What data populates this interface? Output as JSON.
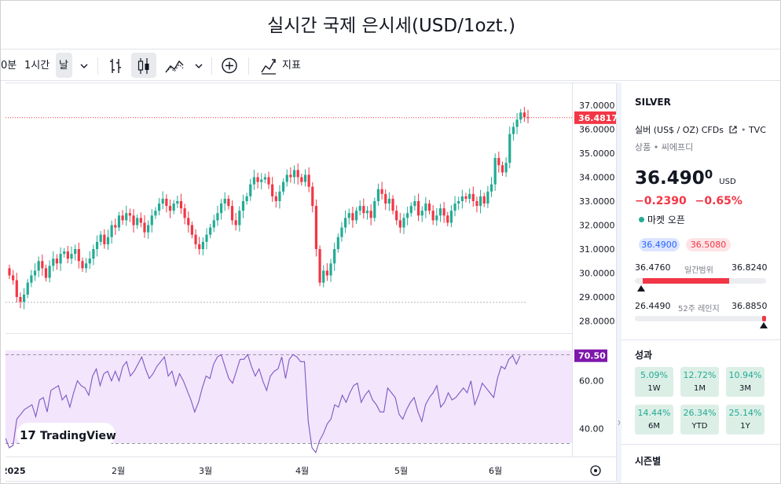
{
  "page_title": "실시간 국제 은시세(USD/1ozt.)",
  "toolbar": {
    "interval_partial": "0분",
    "interval_1h": "1시간",
    "interval_day": "날",
    "indicators_label": "지표"
  },
  "price_scale": {
    "labels": [
      "37.0000",
      "36.0000",
      "35.0000",
      "34.0000",
      "33.0000",
      "32.0000",
      "31.0000",
      "30.0000",
      "29.0000",
      "28.0000"
    ],
    "current_price_label": "36.4817",
    "rsi_labels": [
      "60.00",
      "40.00"
    ],
    "rsi_current_label": "70.50"
  },
  "time_axis": [
    "2025",
    "2월",
    "3월",
    "4월",
    "5월",
    "6월"
  ],
  "watermark": "TradingView",
  "colors": {
    "up": "#22ab94",
    "down": "#f23645",
    "rsi_line": "#7e57c2",
    "rsi_band": "#f3e5fc",
    "price_tag": "#f23645",
    "rsi_tag": "#7e17ab"
  },
  "sidebar": {
    "symbol": "SILVER",
    "description": "실버 (US$ / OZ) CFDs",
    "source": "TVC",
    "category": "상품",
    "category2": "씨에프디",
    "price_main": "36.490",
    "price_sup": "0",
    "currency": "USD",
    "change": "−0.2390",
    "change_pct": "−0.65%",
    "market_status": "마켓 오픈",
    "bid": "36.4900",
    "ask": "36.5080",
    "day_low": "36.4760",
    "day_range_label": "일간범위",
    "day_high": "36.8240",
    "week52_low": "26.4490",
    "week52_label": "52주 레인지",
    "week52_high": "36.8850",
    "performance_title": "성과",
    "performance": [
      {
        "value": "5.09%",
        "label": "1W"
      },
      {
        "value": "12.72%",
        "label": "1M"
      },
      {
        "value": "10.94%",
        "label": "3M"
      },
      {
        "value": "14.44%",
        "label": "6M"
      },
      {
        "value": "26.34%",
        "label": "YTD"
      },
      {
        "value": "25.14%",
        "label": "1Y"
      }
    ],
    "seasonals_title": "시즌별"
  },
  "chart_data": {
    "type": "candlestick",
    "x_start": "2025-01-02",
    "x_ticks": [
      "2025",
      "2월",
      "3월",
      "4월",
      "5월",
      "6월"
    ],
    "ylim": [
      27.7,
      37.3
    ],
    "y_ticks": [
      37,
      36,
      35,
      34,
      33,
      32,
      31,
      30,
      29,
      28
    ],
    "current_price": 36.4817,
    "baseline": 28.78,
    "close": [
      29.9,
      29.7,
      29.0,
      28.8,
      29.1,
      29.6,
      29.9,
      30.1,
      30.5,
      30.2,
      29.8,
      30.3,
      30.6,
      30.4,
      30.8,
      30.9,
      30.6,
      30.8,
      31.0,
      30.5,
      30.2,
      30.4,
      30.6,
      31.0,
      31.3,
      31.6,
      31.2,
      31.5,
      32.0,
      31.9,
      32.4,
      32.2,
      32.5,
      32.4,
      32.0,
      32.3,
      32.1,
      31.7,
      32.0,
      32.4,
      32.6,
      32.9,
      33.1,
      32.8,
      32.6,
      32.9,
      33.0,
      32.7,
      32.3,
      32.0,
      31.6,
      31.2,
      31.0,
      31.3,
      31.6,
      31.9,
      32.2,
      32.5,
      32.9,
      33.1,
      32.8,
      32.2,
      32.0,
      32.6,
      33.0,
      33.2,
      33.7,
      34.0,
      33.8,
      33.9,
      34.0,
      33.7,
      33.2,
      33.0,
      33.4,
      33.8,
      34.1,
      34.0,
      34.3,
      34.0,
      33.8,
      34.1,
      33.6,
      32.8,
      31.0,
      29.6,
      30.1,
      29.9,
      30.4,
      31.0,
      31.5,
      31.9,
      32.3,
      32.5,
      32.2,
      32.6,
      32.8,
      32.5,
      32.6,
      32.3,
      33.0,
      33.5,
      33.3,
      32.9,
      33.1,
      32.6,
      32.2,
      31.9,
      32.3,
      32.5,
      32.8,
      33.0,
      32.4,
      32.6,
      32.9,
      32.6,
      32.2,
      32.4,
      32.7,
      32.4,
      32.1,
      32.6,
      32.9,
      33.0,
      33.2,
      33.1,
      33.3,
      33.0,
      32.8,
      33.2,
      32.9,
      33.4,
      33.7,
      34.8,
      34.5,
      34.2,
      34.6,
      35.8,
      36.1,
      36.4,
      36.7,
      36.5,
      36.4817
    ],
    "rsi": [
      36,
      32,
      33,
      44,
      46,
      48,
      49,
      50,
      45,
      52,
      53,
      47,
      56,
      57,
      58,
      52,
      54,
      49,
      55,
      60,
      58,
      57,
      54,
      62,
      65,
      58,
      63,
      64,
      60,
      64,
      60,
      66,
      68,
      62,
      64,
      67,
      70,
      65,
      61,
      63,
      66,
      68,
      70,
      62,
      64,
      58,
      63,
      60,
      56,
      52,
      47,
      51,
      57,
      62,
      61,
      67,
      70,
      71,
      66,
      61,
      59,
      64,
      69,
      69,
      71,
      66,
      62,
      65,
      60,
      56,
      62,
      64,
      65,
      70,
      61,
      69,
      71,
      70,
      68,
      68,
      43,
      32,
      30,
      35,
      38,
      42,
      44,
      50,
      49,
      54,
      51,
      55,
      58,
      59,
      51,
      54,
      56,
      52,
      50,
      47,
      47,
      57,
      55,
      53,
      46,
      44,
      48,
      51,
      53,
      47,
      43,
      50,
      53,
      55,
      58,
      49,
      51,
      55,
      52,
      53,
      55,
      57,
      55,
      60,
      50,
      54,
      59,
      57,
      55,
      53,
      61,
      66,
      65,
      69,
      70.5,
      67,
      70.5
    ],
    "rsi_ylim": [
      30,
      76
    ],
    "rsi_band": [
      30,
      70
    ],
    "rsi_ticks": [
      60,
      40
    ]
  }
}
